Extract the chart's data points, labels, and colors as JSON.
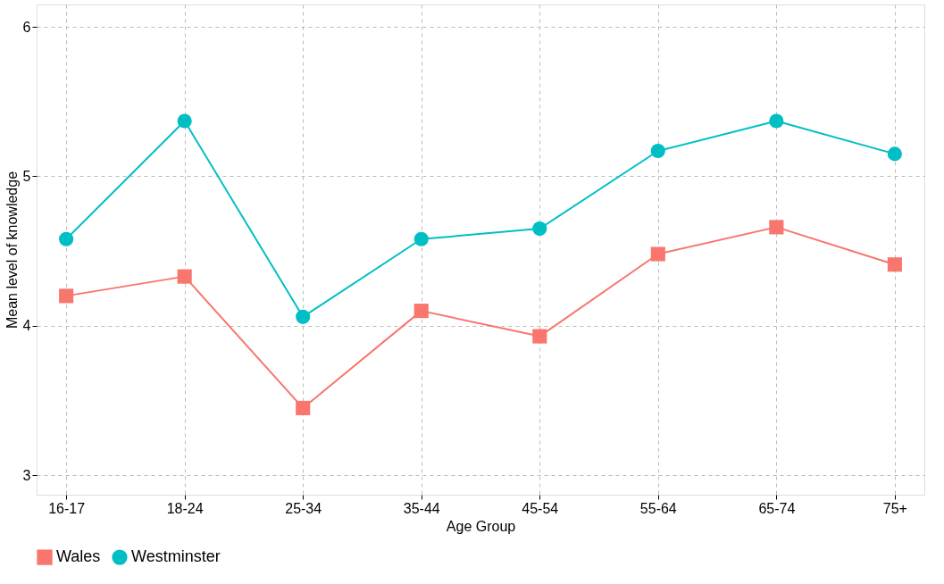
{
  "chart_data": {
    "type": "line",
    "xlabel": "Age Group",
    "ylabel": "Mean level of knowledge",
    "categories": [
      "16-17",
      "18-24",
      "25-34",
      "35-44",
      "45-54",
      "55-64",
      "65-74",
      "75+"
    ],
    "series": [
      {
        "name": "Wales",
        "color": "#f8766d",
        "marker": "square",
        "values": [
          4.2,
          4.33,
          3.45,
          4.1,
          3.93,
          4.48,
          4.66,
          4.41
        ]
      },
      {
        "name": "Westminster",
        "color": "#00bfc4",
        "marker": "circle",
        "values": [
          4.58,
          5.37,
          4.06,
          4.58,
          4.65,
          5.17,
          5.37,
          5.15
        ]
      }
    ],
    "ylim": [
      2.87,
      6.15
    ],
    "yticks": [
      3,
      4,
      5,
      6
    ],
    "grid": true,
    "legend": "bottom",
    "line_style": "solid"
  }
}
